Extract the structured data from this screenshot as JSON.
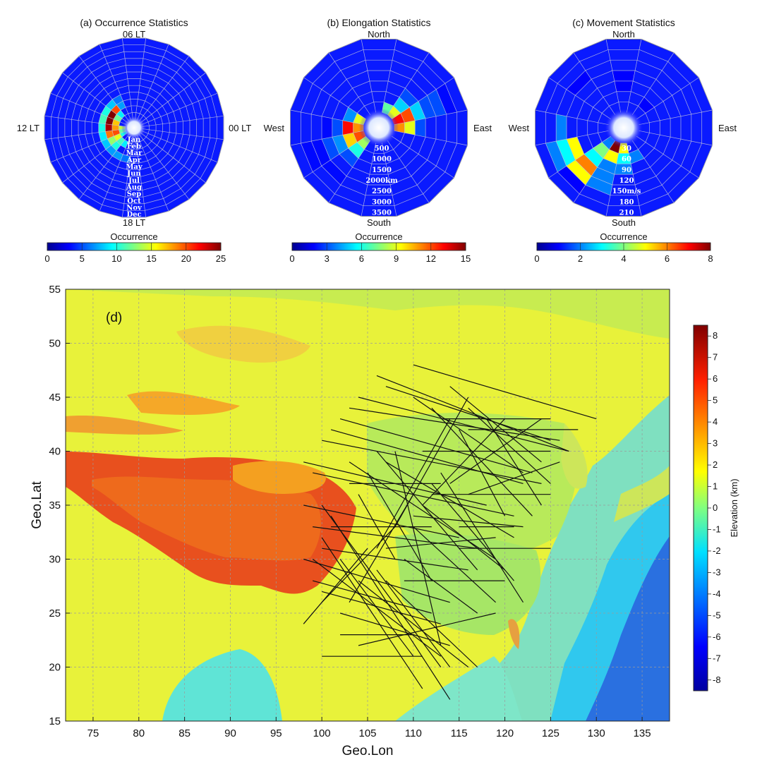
{
  "chart_data": [
    {
      "type": "polar-heatmap",
      "title": "(a) Occurrence Statistics",
      "direction_labels": {
        "top": "06 LT",
        "left": "12 LT",
        "right": "00 LT",
        "bottom": "18 LT"
      },
      "ring_labels": [
        "Jan",
        "Feb",
        "Mar",
        "Apr",
        "May",
        "Jun",
        "Jul",
        "Aug",
        "Sep",
        "Oct",
        "Nov",
        "Dec"
      ],
      "colorbar": {
        "label": "Occurrence",
        "ticks": [
          "0",
          "5",
          "10",
          "15",
          "20",
          "25"
        ],
        "min": 0,
        "max": 25
      },
      "rings": 12,
      "sectors": 24,
      "cells": [
        {
          "ring": 1,
          "sector": 11,
          "value": 14
        },
        {
          "ring": 1,
          "sector": 12,
          "value": 12
        },
        {
          "ring": 1,
          "sector": 13,
          "value": 10
        },
        {
          "ring": 2,
          "sector": 8,
          "value": 9
        },
        {
          "ring": 2,
          "sector": 9,
          "value": 12
        },
        {
          "ring": 2,
          "sector": 10,
          "value": 17
        },
        {
          "ring": 2,
          "sector": 11,
          "value": 18
        },
        {
          "ring": 2,
          "sector": 12,
          "value": 20
        },
        {
          "ring": 2,
          "sector": 13,
          "value": 15
        },
        {
          "ring": 2,
          "sector": 14,
          "value": 11
        },
        {
          "ring": 2,
          "sector": 15,
          "value": 9
        },
        {
          "ring": 3,
          "sector": 7,
          "value": 7
        },
        {
          "ring": 3,
          "sector": 8,
          "value": 20
        },
        {
          "ring": 3,
          "sector": 9,
          "value": 25
        },
        {
          "ring": 3,
          "sector": 10,
          "value": 25
        },
        {
          "ring": 3,
          "sector": 11,
          "value": 24
        },
        {
          "ring": 3,
          "sector": 12,
          "value": 19
        },
        {
          "ring": 3,
          "sector": 13,
          "value": 13
        },
        {
          "ring": 3,
          "sector": 14,
          "value": 10
        },
        {
          "ring": 4,
          "sector": 7,
          "value": 6
        },
        {
          "ring": 4,
          "sector": 8,
          "value": 8
        },
        {
          "ring": 4,
          "sector": 9,
          "value": 10
        },
        {
          "ring": 4,
          "sector": 10,
          "value": 11
        },
        {
          "ring": 4,
          "sector": 11,
          "value": 10
        },
        {
          "ring": 4,
          "sector": 12,
          "value": 9
        },
        {
          "ring": 4,
          "sector": 13,
          "value": 8
        },
        {
          "ring": 4,
          "sector": 14,
          "value": 7
        },
        {
          "ring": 4,
          "sector": 15,
          "value": 7
        },
        {
          "ring": 4,
          "sector": 16,
          "value": 6
        }
      ]
    },
    {
      "type": "polar-heatmap",
      "title": "(b) Elongation Statistics",
      "direction_labels": {
        "top": "North",
        "left": "West",
        "right": "East",
        "bottom": "South"
      },
      "ring_labels": [
        "500",
        "1000",
        "1500",
        "2000km",
        "2500",
        "3000",
        "3500"
      ],
      "colorbar": {
        "label": "Occurrence",
        "ticks": [
          "0",
          "3",
          "6",
          "9",
          "12",
          "15"
        ],
        "min": 0,
        "max": 15
      },
      "rings": 7,
      "sectors": 16,
      "cells": [
        {
          "ring": 1,
          "sector": 0,
          "value": 13
        },
        {
          "ring": 1,
          "sector": 15,
          "value": 11
        },
        {
          "ring": 1,
          "sector": 1,
          "value": 9
        },
        {
          "ring": 1,
          "sector": 2,
          "value": 7
        },
        {
          "ring": 1,
          "sector": 7,
          "value": 11
        },
        {
          "ring": 1,
          "sector": 8,
          "value": 12
        },
        {
          "ring": 1,
          "sector": 9,
          "value": 8
        },
        {
          "ring": 1,
          "sector": 6,
          "value": 9
        },
        {
          "ring": 2,
          "sector": 0,
          "value": 12
        },
        {
          "ring": 2,
          "sector": 15,
          "value": 9
        },
        {
          "ring": 2,
          "sector": 1,
          "value": 5
        },
        {
          "ring": 2,
          "sector": 7,
          "value": 13
        },
        {
          "ring": 2,
          "sector": 8,
          "value": 10
        },
        {
          "ring": 2,
          "sector": 9,
          "value": 6
        },
        {
          "ring": 2,
          "sector": 6,
          "value": 4
        },
        {
          "ring": 3,
          "sector": 0,
          "value": 5
        },
        {
          "ring": 3,
          "sector": 15,
          "value": 3
        },
        {
          "ring": 3,
          "sector": 1,
          "value": 3
        },
        {
          "ring": 3,
          "sector": 7,
          "value": 3
        },
        {
          "ring": 3,
          "sector": 8,
          "value": 4
        },
        {
          "ring": 3,
          "sector": 9,
          "value": 3
        },
        {
          "ring": 4,
          "sector": 0,
          "value": 3
        },
        {
          "ring": 4,
          "sector": 8,
          "value": 3
        },
        {
          "ring": 4,
          "sector": 7,
          "value": 2
        },
        {
          "ring": 5,
          "sector": 0,
          "value": 3
        },
        {
          "ring": 5,
          "sector": 8,
          "value": 2
        },
        {
          "ring": 5,
          "sector": 9,
          "value": 2
        },
        {
          "ring": 6,
          "sector": 0,
          "value": 2
        },
        {
          "ring": 6,
          "sector": 8,
          "value": 2
        }
      ]
    },
    {
      "type": "polar-heatmap",
      "title": "(c) Movement Statistics",
      "direction_labels": {
        "top": "North",
        "left": "West",
        "right": "East",
        "bottom": "South"
      },
      "ring_labels": [
        "30",
        "60",
        "90",
        "120",
        "150m/s",
        "180",
        "210"
      ],
      "colorbar": {
        "label": "Occurrence",
        "ticks": [
          "0",
          "2",
          "4",
          "6",
          "8"
        ],
        "min": 0,
        "max": 8
      },
      "rings": 7,
      "sectors": 16,
      "cells": [
        {
          "ring": 1,
          "sector": 10,
          "value": 8
        },
        {
          "ring": 1,
          "sector": 11,
          "value": 5
        },
        {
          "ring": 1,
          "sector": 9,
          "value": 2
        },
        {
          "ring": 2,
          "sector": 10,
          "value": 5
        },
        {
          "ring": 2,
          "sector": 11,
          "value": 3
        },
        {
          "ring": 2,
          "sector": 9,
          "value": 4
        },
        {
          "ring": 2,
          "sector": 12,
          "value": 2
        },
        {
          "ring": 3,
          "sector": 9,
          "value": 3
        },
        {
          "ring": 3,
          "sector": 10,
          "value": 2
        },
        {
          "ring": 3,
          "sector": 11,
          "value": 2
        },
        {
          "ring": 4,
          "sector": 9,
          "value": 6
        },
        {
          "ring": 4,
          "sector": 8,
          "value": 5
        },
        {
          "ring": 4,
          "sector": 10,
          "value": 2
        },
        {
          "ring": 5,
          "sector": 9,
          "value": 5
        },
        {
          "ring": 5,
          "sector": 8,
          "value": 3
        },
        {
          "ring": 5,
          "sector": 7,
          "value": 2
        },
        {
          "ring": 5,
          "sector": 10,
          "value": 2
        },
        {
          "ring": 6,
          "sector": 8,
          "value": 2
        },
        {
          "ring": 6,
          "sector": 9,
          "value": 1
        },
        {
          "ring": 3,
          "sector": 3,
          "value": 1
        },
        {
          "ring": 4,
          "sector": 3,
          "value": 1
        },
        {
          "ring": 5,
          "sector": 5,
          "value": 1
        },
        {
          "ring": 2,
          "sector": 1,
          "value": 1
        }
      ]
    },
    {
      "type": "map",
      "panel_label": "(d)",
      "xlabel": "Geo.Lon",
      "ylabel": "Geo.Lat",
      "xlim": [
        72,
        138
      ],
      "ylim": [
        15,
        55
      ],
      "xticks": [
        "75",
        "80",
        "85",
        "90",
        "95",
        "100",
        "105",
        "110",
        "115",
        "120",
        "125",
        "130",
        "135"
      ],
      "yticks": [
        "15",
        "20",
        "25",
        "30",
        "35",
        "40",
        "45",
        "50",
        "55"
      ],
      "colorbar": {
        "label": "Elevation (km)",
        "ticks": [
          "8",
          "7",
          "6",
          "5",
          "4",
          "3",
          "2",
          "1",
          "0",
          "-1",
          "-2",
          "-3",
          "-4",
          "-5",
          "-6",
          "-7",
          "-8"
        ],
        "min": -8.5,
        "max": 8.5
      },
      "tracks": [
        [
          [
            110,
            48
          ],
          [
            130,
            43
          ]
        ],
        [
          [
            106,
            47
          ],
          [
            127,
            40
          ]
        ],
        [
          [
            107,
            46
          ],
          [
            125,
            41
          ]
        ],
        [
          [
            104,
            45
          ],
          [
            127,
            40
          ]
        ],
        [
          [
            103,
            44
          ],
          [
            126,
            41
          ]
        ],
        [
          [
            102,
            43
          ],
          [
            123,
            38
          ]
        ],
        [
          [
            101,
            42
          ],
          [
            122,
            37
          ]
        ],
        [
          [
            100,
            41
          ],
          [
            124,
            37
          ]
        ],
        [
          [
            98,
            39
          ],
          [
            118,
            35
          ]
        ],
        [
          [
            99,
            38
          ],
          [
            121,
            34
          ]
        ],
        [
          [
            98,
            35
          ],
          [
            115,
            32
          ]
        ],
        [
          [
            99,
            33
          ],
          [
            117,
            31
          ]
        ],
        [
          [
            100,
            31
          ],
          [
            116,
            29
          ]
        ],
        [
          [
            98,
            30
          ],
          [
            114,
            26
          ]
        ],
        [
          [
            99,
            28
          ],
          [
            112,
            25
          ]
        ],
        [
          [
            100,
            27
          ],
          [
            113,
            24
          ]
        ],
        [
          [
            102,
            25
          ],
          [
            114,
            22
          ]
        ],
        [
          [
            100,
            21
          ],
          [
            111,
            21
          ]
        ],
        [
          [
            102,
            23
          ],
          [
            110,
            23
          ]
        ],
        [
          [
            104,
            22
          ],
          [
            119,
            25
          ]
        ],
        [
          [
            111,
            40
          ],
          [
            125,
            40
          ]
        ],
        [
          [
            116,
            42
          ],
          [
            128,
            42
          ]
        ],
        [
          [
            113,
            43
          ],
          [
            125,
            43
          ]
        ],
        [
          [
            112,
            36
          ],
          [
            125,
            36
          ]
        ],
        [
          [
            110,
            34
          ],
          [
            122,
            33
          ]
        ],
        [
          [
            107,
            31
          ],
          [
            119,
            32
          ]
        ],
        [
          [
            109,
            28
          ],
          [
            120,
            28
          ]
        ],
        [
          [
            115,
            31
          ],
          [
            125,
            31
          ]
        ],
        [
          [
            115,
            33
          ],
          [
            121,
            33
          ]
        ],
        [
          [
            103,
            37
          ],
          [
            113,
            37
          ]
        ],
        [
          [
            101,
            33
          ],
          [
            112,
            33
          ]
        ],
        [
          [
            106,
            40
          ],
          [
            117,
            29
          ]
        ],
        [
          [
            105,
            38
          ],
          [
            112,
            28
          ]
        ],
        [
          [
            104,
            36
          ],
          [
            108,
            30
          ]
        ],
        [
          [
            103,
            39
          ],
          [
            119,
            30
          ]
        ],
        [
          [
            107,
            39
          ],
          [
            121,
            32
          ]
        ],
        [
          [
            110,
            45
          ],
          [
            122,
            38
          ]
        ],
        [
          [
            114,
            46
          ],
          [
            124,
            39
          ]
        ],
        [
          [
            116,
            44
          ],
          [
            125,
            37
          ]
        ],
        [
          [
            118,
            43
          ],
          [
            124,
            35
          ]
        ],
        [
          [
            115,
            42
          ],
          [
            120,
            34
          ]
        ],
        [
          [
            112,
            44
          ],
          [
            123,
            34
          ]
        ],
        [
          [
            108,
            40
          ],
          [
            113,
            22
          ]
        ],
        [
          [
            100,
            35
          ],
          [
            113,
            20
          ]
        ],
        [
          [
            101,
            34
          ],
          [
            114,
            17
          ]
        ],
        [
          [
            100,
            32
          ],
          [
            111,
            18
          ]
        ],
        [
          [
            99,
            30
          ],
          [
            113,
            21
          ]
        ],
        [
          [
            102,
            30
          ],
          [
            110,
            21
          ]
        ],
        [
          [
            104,
            28
          ],
          [
            116,
            20
          ]
        ],
        [
          [
            106,
            29
          ],
          [
            114,
            20
          ]
        ],
        [
          [
            107,
            28
          ],
          [
            117,
            20
          ]
        ],
        [
          [
            109,
            30
          ],
          [
            117,
            25
          ]
        ],
        [
          [
            110,
            33
          ],
          [
            119,
            26
          ]
        ],
        [
          [
            111,
            35
          ],
          [
            120,
            29
          ]
        ],
        [
          [
            112,
            37
          ],
          [
            121,
            28
          ]
        ],
        [
          [
            113,
            38
          ],
          [
            122,
            26
          ]
        ],
        [
          [
            98,
            24
          ],
          [
            105,
            31
          ]
        ],
        [
          [
            100,
            26
          ],
          [
            108,
            33
          ]
        ],
        [
          [
            103,
            26
          ],
          [
            110,
            36
          ]
        ],
        [
          [
            106,
            31
          ],
          [
            114,
            43
          ]
        ],
        [
          [
            108,
            33
          ],
          [
            116,
            45
          ]
        ],
        [
          [
            111,
            35
          ],
          [
            120,
            43
          ]
        ],
        [
          [
            114,
            37
          ],
          [
            124,
            43
          ]
        ],
        [
          [
            116,
            36
          ],
          [
            126,
            39
          ]
        ]
      ]
    }
  ]
}
